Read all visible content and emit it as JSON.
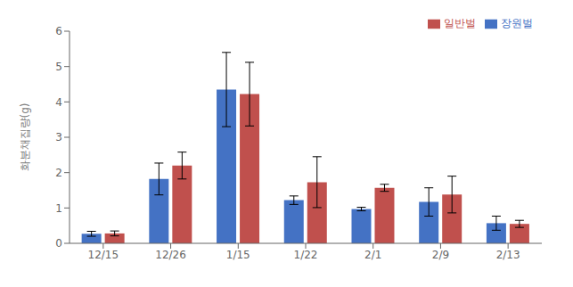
{
  "chart_data": {
    "type": "bar",
    "categories": [
      "12/15",
      "12/26",
      "1/15",
      "1/22",
      "2/1",
      "2/9",
      "2/13"
    ],
    "series": [
      {
        "name": "장원벌",
        "color": "#4472C4",
        "values": [
          0.27,
          1.82,
          4.35,
          1.22,
          0.97,
          1.17,
          0.57
        ],
        "errors": [
          0.07,
          0.45,
          1.05,
          0.12,
          0.05,
          0.4,
          0.2
        ]
      },
      {
        "name": "일반벌",
        "color": "#C0504D",
        "values": [
          0.28,
          2.2,
          4.22,
          1.73,
          1.57,
          1.38,
          0.55
        ],
        "errors": [
          0.07,
          0.38,
          0.9,
          0.72,
          0.1,
          0.52,
          0.1
        ]
      }
    ],
    "ylabel": "화분채집량(g)",
    "ylim": [
      0,
      6
    ],
    "yticks": [
      0,
      1,
      2,
      3,
      4,
      5,
      6
    ],
    "grid": false,
    "legend": "upper right"
  }
}
